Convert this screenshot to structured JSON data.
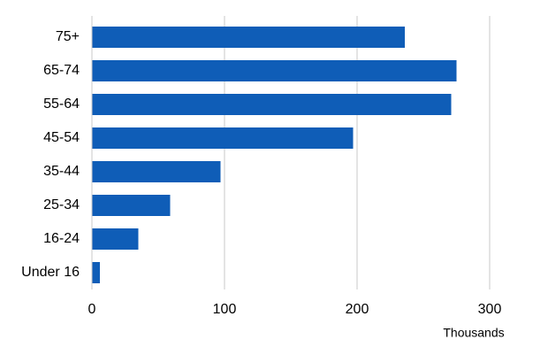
{
  "chart_data": {
    "type": "bar",
    "orientation": "horizontal",
    "categories": [
      "75+",
      "65-74",
      "55-64",
      "45-54",
      "35-44",
      "25-34",
      "16-24",
      "Under 16"
    ],
    "values": [
      236,
      275,
      271,
      197,
      97,
      59,
      35,
      6
    ],
    "color": "#0f5db7",
    "x_label": "Thousands",
    "xlim": [
      0,
      300
    ],
    "xticks": [
      0,
      100,
      200,
      300
    ],
    "grid": true
  }
}
